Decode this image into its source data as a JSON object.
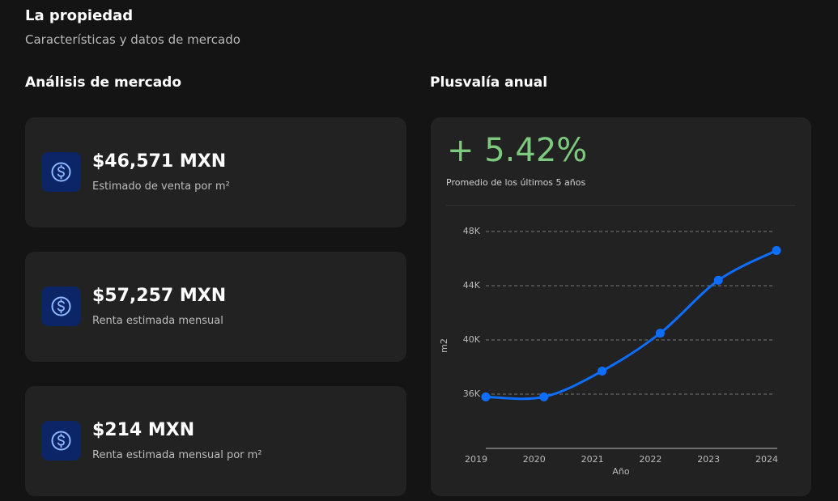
{
  "header": {
    "title": "La propiedad",
    "subtitle": "Características y datos de mercado"
  },
  "market": {
    "title": "Análisis de mercado",
    "cards": [
      {
        "value": "$46,571 MXN",
        "label": "Estimado de venta por m²"
      },
      {
        "value": "$57,257 MXN",
        "label": "Renta estimada mensual"
      },
      {
        "value": "$214 MXN",
        "label": "Renta estimada mensual por m²"
      }
    ]
  },
  "appreciation": {
    "title": "Plusvalía anual",
    "change": "+ 5.42%",
    "caption": "Promedio de los últimos 5 años"
  },
  "chart_data": {
    "type": "line",
    "categories": [
      "2019",
      "2020",
      "2021",
      "2022",
      "2023",
      "2024"
    ],
    "values": [
      35800,
      35800,
      37700,
      40500,
      44400,
      46600
    ],
    "color": "#0d6efd",
    "xlabel": "Año",
    "ylabel": "m2",
    "ylim": [
      32000,
      48000
    ],
    "yticks": [
      {
        "value": 36000,
        "label": "36K"
      },
      {
        "value": 40000,
        "label": "40K"
      },
      {
        "value": 44000,
        "label": "44K"
      },
      {
        "value": 48000,
        "label": "48K"
      }
    ],
    "grid": true
  }
}
